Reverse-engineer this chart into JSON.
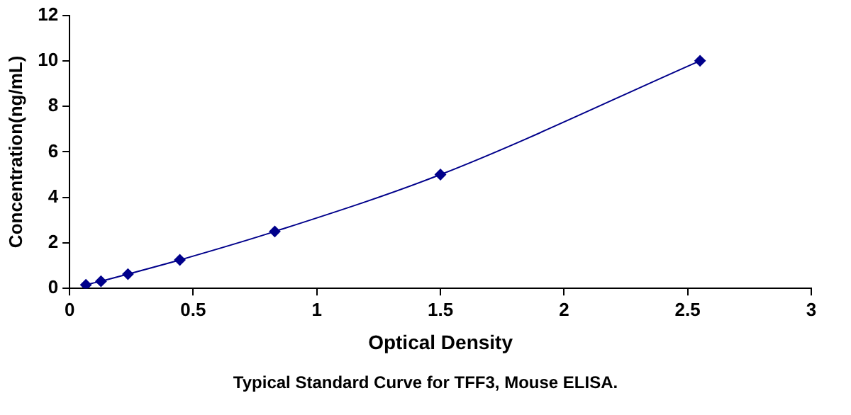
{
  "chart_data": {
    "type": "line",
    "xlabel": "Optical Density",
    "ylabel": "Concentration(ng/mL)",
    "annotations": [
      "Typical Standard Curve for TFF3, Mouse ELISA."
    ],
    "x": [
      0.066,
      0.127,
      0.236,
      0.446,
      0.83,
      1.5,
      2.55
    ],
    "series": [
      {
        "color": "#00008b",
        "values": [
          0.156,
          0.313,
          0.625,
          1.25,
          2.5,
          5,
          10
        ]
      }
    ],
    "xlim": [
      0,
      3
    ],
    "xticks": [
      0,
      0.5,
      1,
      1.5,
      2,
      2.5,
      3
    ],
    "ylim": [
      0,
      12
    ],
    "yticks": [
      0,
      2,
      4,
      6,
      8,
      10,
      12
    ],
    "grid": false,
    "legend": false,
    "marker": "diamond",
    "line_style": "solid"
  }
}
